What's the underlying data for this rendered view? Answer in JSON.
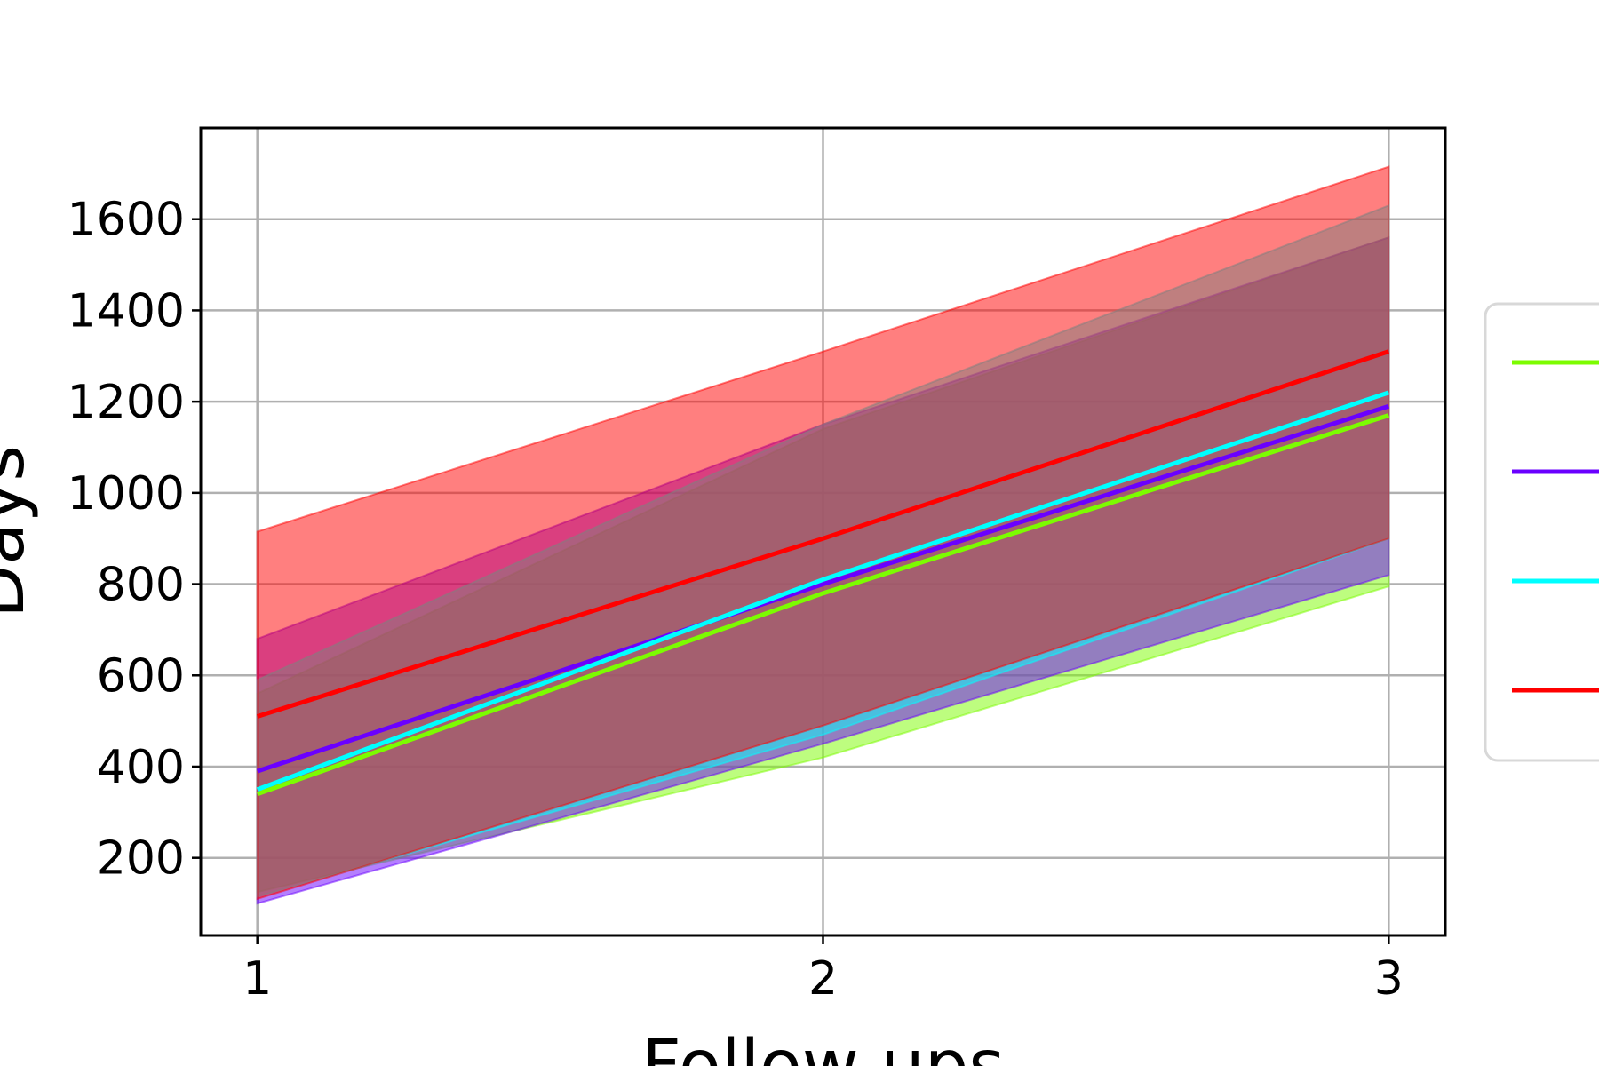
{
  "chart_data": {
    "type": "line",
    "title": "",
    "xlabel": "Follow ups",
    "ylabel": "Days",
    "x": [
      1,
      2,
      3
    ],
    "xticks": [
      "1",
      "2",
      "3"
    ],
    "yticks": [
      200,
      400,
      600,
      800,
      1000,
      1200,
      1400,
      1600
    ],
    "xlim": [
      0.9,
      3.1
    ],
    "ylim": [
      30,
      1800
    ],
    "grid": true,
    "legend": {
      "placement": "right",
      "entries": [
        "",
        "",
        "",
        ""
      ]
    },
    "series": [
      {
        "color": "#7cfc00",
        "mean": [
          340,
          780,
          1170
        ],
        "lower": [
          125,
          420,
          795
        ],
        "upper": [
          560,
          1140,
          1560
        ]
      },
      {
        "color": "#6a00ff",
        "mean": [
          390,
          800,
          1190
        ],
        "lower": [
          100,
          450,
          820
        ],
        "upper": [
          680,
          1150,
          1560
        ]
      },
      {
        "color": "#00ffff",
        "mean": [
          350,
          810,
          1220
        ],
        "lower": [
          115,
          470,
          900
        ],
        "upper": [
          590,
          1150,
          1630
        ]
      },
      {
        "color": "#ff0000",
        "mean": [
          510,
          900,
          1310
        ],
        "lower": [
          110,
          490,
          900
        ],
        "upper": [
          915,
          1310,
          1715
        ]
      }
    ]
  }
}
